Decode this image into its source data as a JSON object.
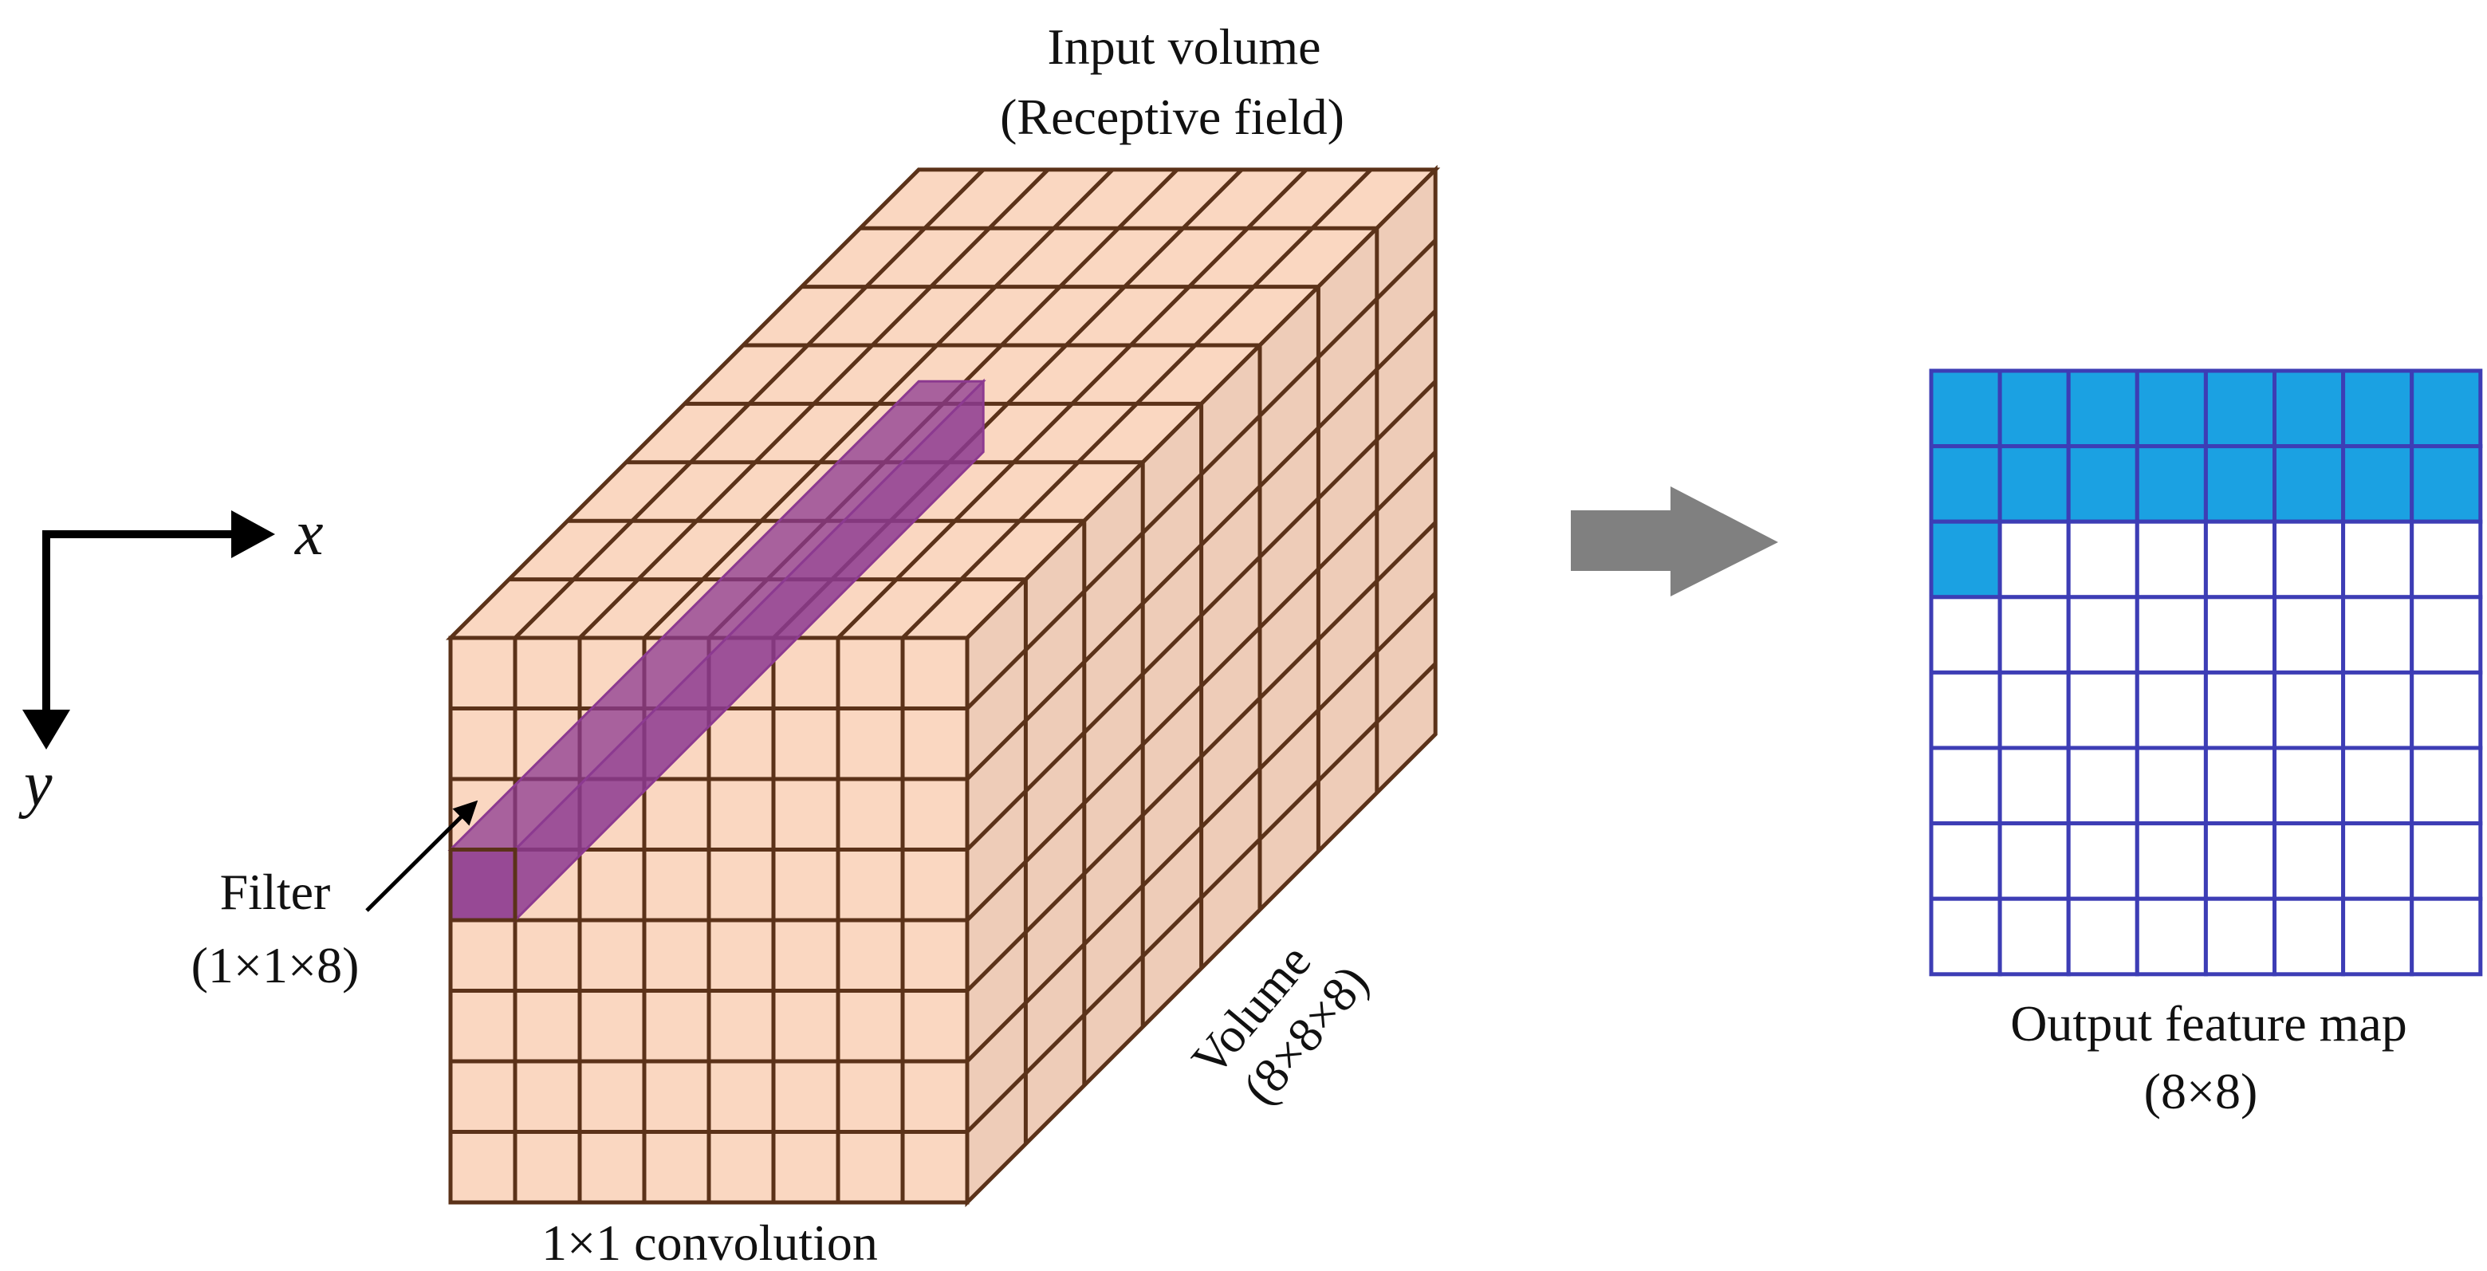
{
  "labels": {
    "input_volume_line1": "Input volume",
    "input_volume_line2": "(Receptive field)",
    "axis_x": "x",
    "axis_y": "y",
    "filter_line1": "Filter",
    "filter_line2": "(1×1×8)",
    "volume_line1": "Volume",
    "volume_line2": "(8×8×8)",
    "conv_caption": "1×1 convolution",
    "output_line1": "Output feature map",
    "output_line2": "(8×8)"
  },
  "volume": {
    "width": 8,
    "height": 8,
    "depth": 8
  },
  "filter": {
    "row": 3,
    "col": 0
  },
  "output": {
    "rows": 8,
    "cols": 8,
    "filled_cells": 17
  },
  "colors": {
    "cube_fill": "#fad7c1",
    "cube_side_fill": "#eeccb8",
    "cube_line": "#5b3219",
    "filter_fill": "#8c3a90",
    "output_filled": "#1ba1e2",
    "output_empty": "#ffffff",
    "output_line": "#3d3db5",
    "arrow": "#808080",
    "axis": "#000000"
  }
}
